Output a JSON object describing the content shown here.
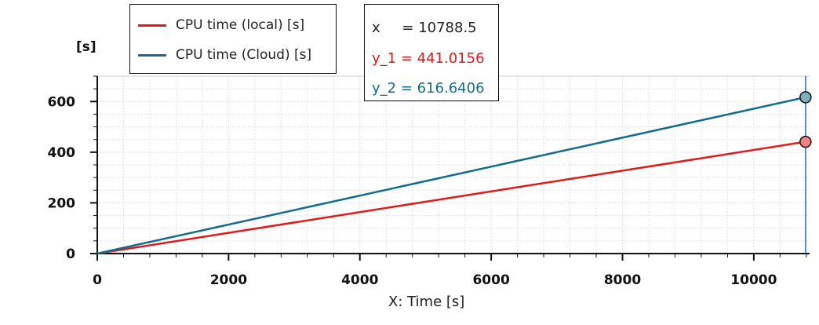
{
  "colors": {
    "series1": "#e01a1a",
    "series2": "#116d8b",
    "cursor": "#2a6fdc"
  },
  "yunit": "[s]",
  "legend": [
    {
      "label": "CPU time (local) [s]",
      "color": "#e01a1a"
    },
    {
      "label": "CPU time (Cloud) [s]",
      "color": "#116d8b"
    }
  ],
  "readout": {
    "x_label": "x",
    "x_value": "= 10788.5",
    "y1": "y_1 = 441.0156",
    "y2": "y_2 = 616.6406"
  },
  "chart_data": {
    "type": "line",
    "xlabel": "X: Time [s]",
    "ylabel": "[s]",
    "xlim": [
      0,
      10850
    ],
    "ylim": [
      0,
      700
    ],
    "xticks": [
      0,
      2000,
      4000,
      6000,
      8000,
      10000
    ],
    "yticks": [
      0,
      200,
      400,
      600
    ],
    "grid": true,
    "legend_position": "top-left",
    "series": [
      {
        "name": "CPU time (local) [s]",
        "color": "#e01a1a",
        "x": [
          0,
          10788.5
        ],
        "y": [
          0,
          441.0156
        ]
      },
      {
        "name": "CPU time (Cloud) [s]",
        "color": "#116d8b",
        "x": [
          0,
          10788.5
        ],
        "y": [
          0,
          616.6406
        ]
      }
    ],
    "cursor_x": 10788.5
  }
}
